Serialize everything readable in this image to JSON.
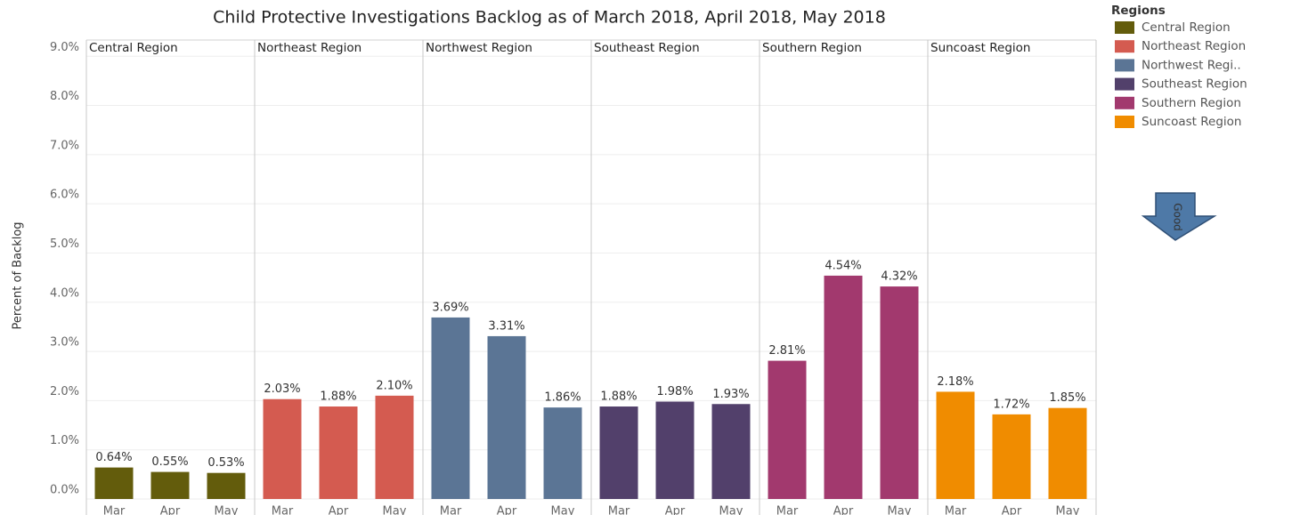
{
  "chart_data": {
    "type": "bar",
    "title": "Child Protective Investigations Backlog as of March 2018, April 2018, May 2018",
    "y_label": "Percent of Backlog",
    "legend_title": "Regions",
    "legend_labels": [
      "Central Region",
      "Northeast Region",
      "Northwest Regi..",
      "Southeast Region",
      "Southern Region",
      "Suncoast Region"
    ],
    "annotation": "Good",
    "categories": [
      "Mar",
      "Apr",
      "May"
    ],
    "series": [
      {
        "name": "Central Region",
        "color": "#635c0c",
        "values": [
          0.64,
          0.55,
          0.53
        ],
        "value_labels": [
          "0.64%",
          "0.55%",
          "0.53%"
        ]
      },
      {
        "name": "Northeast Region",
        "color": "#d45b50",
        "values": [
          2.03,
          1.88,
          2.1
        ],
        "value_labels": [
          "2.03%",
          "1.88%",
          "2.10%"
        ]
      },
      {
        "name": "Northwest Region",
        "color": "#5b7595",
        "values": [
          3.69,
          3.31,
          1.86
        ],
        "value_labels": [
          "3.69%",
          "3.31%",
          "1.86%"
        ]
      },
      {
        "name": "Southeast Region",
        "color": "#52406b",
        "values": [
          1.88,
          1.98,
          1.93
        ],
        "value_labels": [
          "1.88%",
          "1.98%",
          "1.93%"
        ]
      },
      {
        "name": "Southern Region",
        "color": "#a2396e",
        "values": [
          2.81,
          4.54,
          4.32
        ],
        "value_labels": [
          "2.81%",
          "4.54%",
          "4.32%"
        ]
      },
      {
        "name": "Suncoast Region",
        "color": "#f08c00",
        "values": [
          2.18,
          1.72,
          1.85
        ],
        "value_labels": [
          "2.18%",
          "1.72%",
          "1.85%"
        ]
      }
    ],
    "ylim": [
      0,
      9.33
    ],
    "yticks": [
      {
        "value": 0,
        "label": "0.0%"
      },
      {
        "value": 1,
        "label": "1.0%"
      },
      {
        "value": 2,
        "label": "2.0%"
      },
      {
        "value": 3,
        "label": "3.0%"
      },
      {
        "value": 4,
        "label": "4.0%"
      },
      {
        "value": 5,
        "label": "5.0%"
      },
      {
        "value": 6,
        "label": "6.0%"
      },
      {
        "value": 7,
        "label": "7.0%"
      },
      {
        "value": 8,
        "label": "8.0%"
      },
      {
        "value": 9,
        "label": "9.0%"
      }
    ],
    "grid": true
  }
}
